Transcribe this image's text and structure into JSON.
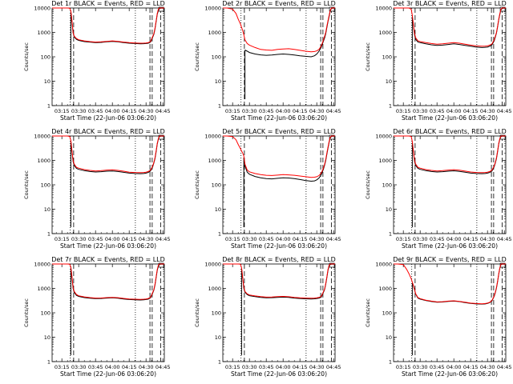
{
  "layout": {
    "panels_x": [
      65,
      278,
      491
    ],
    "panels_y": [
      10,
      170,
      330
    ],
    "plot_w": 140,
    "plot_h": 122
  },
  "chart_data": {
    "type": "line",
    "y_scale": "log",
    "ylim": [
      1,
      10000
    ],
    "y_ticks": [
      1,
      10,
      100,
      1000,
      10000
    ],
    "y_tick_labels": [
      "1",
      "10",
      "100",
      "1000",
      "10000"
    ],
    "x_ticks_min": [
      15,
      30,
      45,
      60,
      75,
      90,
      105
    ],
    "x_tick_labels": [
      "03:15",
      "03:30",
      "03:45",
      "04:00",
      "04:15",
      "04:30",
      "04:45"
    ],
    "x_range_min": [
      6.3,
      106.3
    ],
    "ylabel": "Counts/sec",
    "xlabel": "Start Time (22-Jun-06 03:06:20)",
    "series_names": [
      "Events",
      "LLD"
    ],
    "series_colors": {
      "Events": "#000000",
      "LLD": "#ff0000"
    },
    "x": [
      6.3,
      10,
      15,
      18,
      20,
      22,
      23,
      24,
      25,
      26,
      28,
      30,
      35,
      40,
      45,
      50,
      55,
      60,
      65,
      70,
      75,
      80,
      85,
      88,
      90,
      92,
      94,
      96,
      97,
      98,
      99,
      100,
      101,
      102,
      103,
      104,
      105,
      106.3
    ],
    "panels": [
      {
        "title": "Det 1r BLACK = Events, RED = LLD",
        "marker_x_min": 103.5,
        "dotted_x_min": [
          22.5,
          80.5
        ],
        "dashed_x_min": [
          25.5,
          93.5,
          95.5,
          103
        ],
        "events_start_min": 23,
        "lld": [
          10000,
          10000,
          10000,
          10000,
          10000,
          9800,
          7500,
          3000,
          1000,
          700,
          560,
          500,
          450,
          420,
          400,
          410,
          430,
          450,
          430,
          400,
          380,
          370,
          360,
          365,
          370,
          380,
          420,
          700,
          900,
          1500,
          3000,
          6000,
          9000,
          10000,
          10000,
          10000,
          10000,
          10000
        ],
        "events": [
          null,
          null,
          null,
          null,
          null,
          null,
          7000,
          2700,
          950,
          650,
          520,
          470,
          420,
          400,
          380,
          390,
          410,
          430,
          410,
          380,
          360,
          350,
          340,
          345,
          350,
          360,
          400,
          650,
          850,
          1400,
          2800,
          5500,
          8000,
          9500,
          9800,
          9800,
          9800,
          9800
        ]
      },
      {
        "title": "Det 2r BLACK = Events, RED = LLD",
        "marker_x_min": 103.5,
        "dotted_x_min": [
          22.5,
          80.5
        ],
        "dashed_x_min": [
          25.5,
          93.5,
          95.5,
          103
        ],
        "events_start_min": 25.5,
        "lld": [
          10000,
          10000,
          9000,
          6000,
          3500,
          2200,
          1600,
          1200,
          800,
          500,
          350,
          300,
          240,
          200,
          190,
          185,
          200,
          210,
          215,
          200,
          185,
          170,
          160,
          165,
          175,
          200,
          280,
          500,
          700,
          1000,
          1800,
          3000,
          5000,
          8000,
          10000,
          10000,
          10000,
          10000
        ],
        "events": [
          null,
          null,
          null,
          null,
          null,
          null,
          null,
          null,
          null,
          190,
          170,
          150,
          130,
          120,
          115,
          118,
          125,
          130,
          125,
          118,
          110,
          105,
          100,
          110,
          130,
          170,
          250,
          450,
          600,
          900,
          1600,
          2800,
          4500,
          7500,
          9500,
          9800,
          9800,
          9800
        ]
      },
      {
        "title": "Det 3r BLACK = Events, RED = LLD",
        "marker_x_min": 103.5,
        "dotted_x_min": [
          22.5,
          80.5
        ],
        "dashed_x_min": [
          25.5,
          93.5,
          95.5,
          103
        ],
        "events_start_min": 23,
        "lld": [
          10000,
          10000,
          10000,
          10000,
          10000,
          9000,
          5000,
          2000,
          900,
          600,
          450,
          420,
          380,
          350,
          330,
          340,
          360,
          380,
          360,
          330,
          300,
          280,
          270,
          275,
          280,
          300,
          340,
          500,
          700,
          1000,
          1800,
          3500,
          6000,
          9000,
          10000,
          10000,
          10000,
          10000
        ],
        "events": [
          null,
          null,
          null,
          null,
          null,
          null,
          4500,
          1800,
          800,
          520,
          400,
          380,
          340,
          310,
          295,
          300,
          320,
          340,
          320,
          295,
          270,
          250,
          240,
          245,
          250,
          270,
          310,
          460,
          650,
          950,
          1700,
          3300,
          5500,
          8500,
          9500,
          9800,
          9800,
          9800
        ]
      },
      {
        "title": "Det 4r BLACK = Events, RED = LLD",
        "marker_x_min": 103.5,
        "dotted_x_min": [
          22.5,
          80.5
        ],
        "dashed_x_min": [
          25.5,
          93.5,
          95.5,
          103
        ],
        "events_start_min": 23,
        "lld": [
          10000,
          10000,
          10000,
          10000,
          10000,
          9500,
          6500,
          2500,
          1000,
          700,
          520,
          480,
          420,
          390,
          370,
          380,
          400,
          410,
          390,
          360,
          330,
          320,
          315,
          320,
          330,
          350,
          400,
          600,
          850,
          1300,
          2500,
          5000,
          8000,
          10000,
          10000,
          10000,
          10000,
          10000
        ],
        "events": [
          null,
          null,
          null,
          null,
          null,
          null,
          6000,
          2300,
          900,
          620,
          470,
          430,
          380,
          350,
          335,
          345,
          360,
          370,
          350,
          325,
          300,
          290,
          285,
          290,
          300,
          320,
          370,
          560,
          800,
          1200,
          2300,
          4700,
          7500,
          9500,
          9800,
          9800,
          9800,
          9800
        ]
      },
      {
        "title": "Det 5r BLACK = Events, RED = LLD",
        "marker_x_min": 103.5,
        "dotted_x_min": [
          22.5,
          80.5
        ],
        "dashed_x_min": [
          25.5,
          93.5,
          95.5,
          103
        ],
        "events_start_min": 25,
        "lld": [
          10000,
          10000,
          9500,
          7000,
          4500,
          3000,
          2400,
          2000,
          1500,
          700,
          400,
          340,
          290,
          260,
          245,
          240,
          250,
          260,
          255,
          245,
          230,
          215,
          200,
          205,
          215,
          240,
          300,
          500,
          700,
          1100,
          2000,
          3500,
          6000,
          9000,
          10000,
          10000,
          10000,
          10000
        ],
        "events": [
          null,
          null,
          null,
          null,
          null,
          null,
          null,
          null,
          1300,
          600,
          330,
          270,
          220,
          195,
          180,
          175,
          185,
          195,
          190,
          180,
          165,
          150,
          140,
          145,
          160,
          190,
          260,
          450,
          650,
          1000,
          1800,
          3200,
          5500,
          8500,
          9500,
          9800,
          9800,
          9800
        ]
      },
      {
        "title": "Det 6r BLACK = Events, RED = LLD",
        "marker_x_min": 103.5,
        "dotted_x_min": [
          22.5,
          80.5
        ],
        "dashed_x_min": [
          25.5,
          93.5,
          95.5,
          103
        ],
        "events_start_min": 23,
        "lld": [
          10000,
          10000,
          10000,
          10000,
          10000,
          9500,
          6000,
          2300,
          1000,
          700,
          520,
          480,
          420,
          390,
          370,
          380,
          400,
          415,
          395,
          365,
          335,
          320,
          315,
          320,
          330,
          350,
          400,
          600,
          850,
          1300,
          2500,
          5000,
          8000,
          10000,
          10000,
          10000,
          10000,
          10000
        ],
        "events": [
          null,
          null,
          null,
          null,
          null,
          null,
          5500,
          2100,
          900,
          620,
          470,
          430,
          380,
          350,
          335,
          345,
          360,
          375,
          355,
          330,
          300,
          290,
          285,
          290,
          300,
          320,
          370,
          560,
          800,
          1200,
          2300,
          4700,
          7500,
          9500,
          9800,
          9800,
          9800,
          9800
        ]
      },
      {
        "title": "Det 7r BLACK = Events, RED = LLD",
        "marker_x_min": 103.5,
        "dotted_x_min": [
          22.5,
          80.5
        ],
        "dashed_x_min": [
          25.5,
          93.5,
          95.5,
          103
        ],
        "events_start_min": 23,
        "lld": [
          10000,
          10000,
          10000,
          10000,
          10000,
          9800,
          7500,
          3000,
          1100,
          750,
          560,
          500,
          450,
          420,
          400,
          405,
          420,
          430,
          415,
          390,
          370,
          360,
          355,
          360,
          370,
          385,
          430,
          700,
          900,
          1500,
          3000,
          6000,
          9000,
          10000,
          10000,
          10000,
          10000,
          10000
        ],
        "events": [
          null,
          null,
          null,
          null,
          null,
          null,
          7000,
          2700,
          1000,
          680,
          520,
          470,
          420,
          395,
          380,
          385,
          400,
          410,
          395,
          370,
          350,
          340,
          335,
          340,
          350,
          365,
          410,
          660,
          860,
          1400,
          2800,
          5500,
          8500,
          9500,
          9800,
          9800,
          9800,
          9800
        ]
      },
      {
        "title": "Det 8r BLACK = Events, RED = LLD",
        "marker_x_min": 103.5,
        "dotted_x_min": [
          22.5,
          80.5
        ],
        "dashed_x_min": [
          25.5,
          93.5,
          95.5,
          103
        ],
        "events_start_min": 23,
        "lld": [
          10000,
          10000,
          10000,
          10000,
          10000,
          9800,
          7000,
          2800,
          1100,
          750,
          600,
          540,
          490,
          460,
          440,
          445,
          460,
          470,
          455,
          430,
          410,
          400,
          395,
          400,
          410,
          425,
          470,
          750,
          950,
          1600,
          3000,
          6000,
          9000,
          10000,
          10000,
          10000,
          10000,
          10000
        ],
        "events": [
          null,
          null,
          null,
          null,
          null,
          null,
          6500,
          2600,
          1000,
          700,
          560,
          500,
          460,
          430,
          410,
          415,
          430,
          440,
          425,
          400,
          385,
          375,
          370,
          375,
          385,
          400,
          440,
          700,
          900,
          1500,
          2800,
          5500,
          8500,
          9500,
          9800,
          9800,
          9800,
          9800
        ]
      },
      {
        "title": "Det 9r BLACK = Events, RED = LLD",
        "marker_x_min": 103.5,
        "dotted_x_min": [
          22.5,
          80.5
        ],
        "dashed_x_min": [
          25.5,
          93.5,
          95.5,
          103
        ],
        "events_start_min": 23,
        "lld": [
          10000,
          10000,
          9500,
          6000,
          4000,
          2500,
          1800,
          1300,
          900,
          600,
          420,
          380,
          330,
          300,
          280,
          285,
          300,
          310,
          295,
          270,
          250,
          240,
          235,
          240,
          250,
          270,
          320,
          500,
          700,
          1100,
          2000,
          4000,
          7000,
          10000,
          10000,
          10000,
          10000,
          10000
        ],
        "events": [
          null,
          null,
          null,
          null,
          null,
          null,
          1700,
          1250,
          870,
          580,
          400,
          365,
          320,
          290,
          272,
          277,
          292,
          302,
          287,
          262,
          242,
          232,
          227,
          232,
          242,
          262,
          310,
          480,
          680,
          1050,
          1900,
          3800,
          6700,
          9500,
          9800,
          9800,
          9800,
          9800
        ]
      }
    ]
  }
}
